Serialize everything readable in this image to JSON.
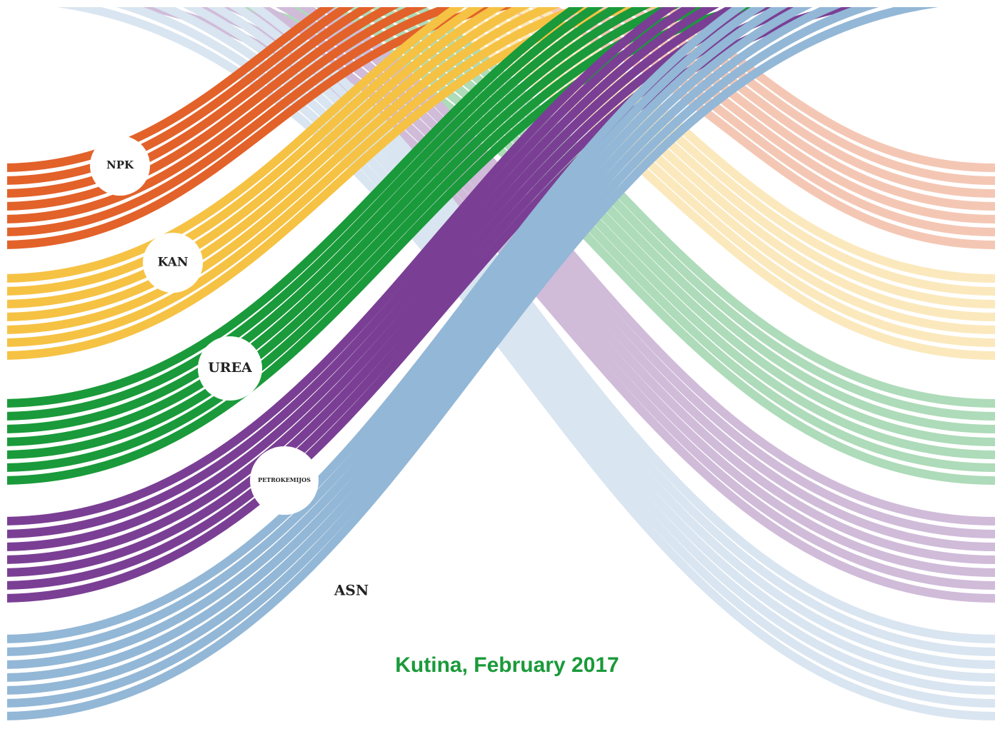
{
  "labels": [
    "NPK",
    "KAN",
    "UREA",
    "PETROKEMIJOS",
    "ASN"
  ],
  "caption": "Kutina, February 2017"
}
